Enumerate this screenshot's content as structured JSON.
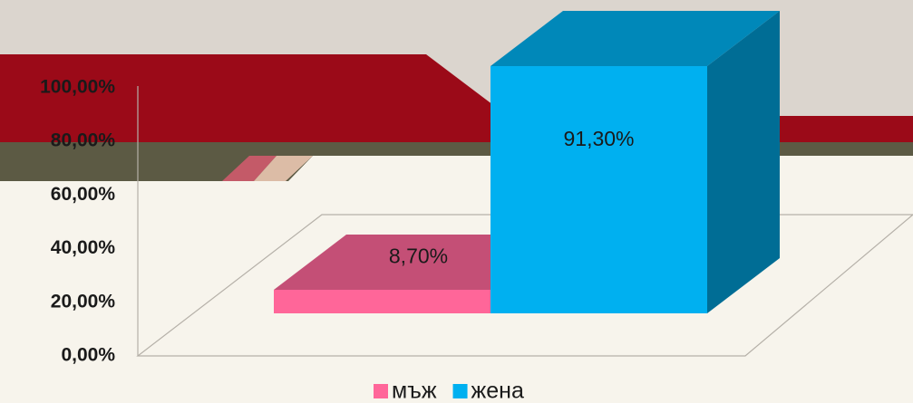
{
  "chart_data": {
    "type": "bar3d",
    "series": [
      {
        "name": "мъж",
        "color": "#ff6699",
        "values": [
          8.7
        ],
        "value_labels": [
          "8,70%"
        ]
      },
      {
        "name": "жена",
        "color": "#00b0f0",
        "values": [
          91.3
        ],
        "value_labels": [
          "91,30%"
        ]
      }
    ],
    "ylim": [
      0,
      100
    ],
    "yticks": [
      {
        "value": 0,
        "label": "0,00%"
      },
      {
        "value": 20,
        "label": "20,00%"
      },
      {
        "value": 40,
        "label": "40,00%"
      },
      {
        "value": 60,
        "label": "60,00%"
      },
      {
        "value": 80,
        "label": "80,00%"
      },
      {
        "value": 100,
        "label": "100,00%"
      }
    ],
    "legend": "bottom"
  }
}
